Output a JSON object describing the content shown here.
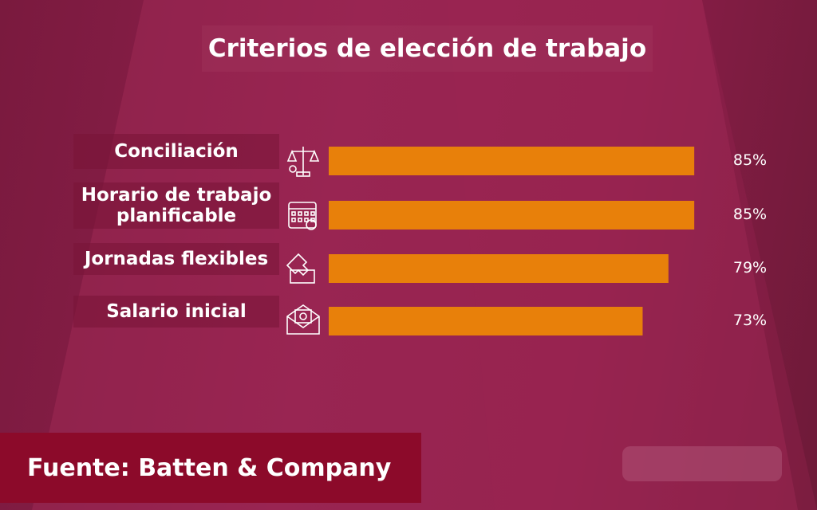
{
  "chart_data": {
    "type": "bar",
    "orientation": "horizontal",
    "title": "Criterios de elección de trabajo",
    "categories": [
      "Conciliación",
      "Horario de trabajo planificable",
      "Jornadas flexibles",
      "Salario inicial"
    ],
    "values": [
      85,
      85,
      79,
      73
    ],
    "value_labels": [
      "85%",
      "85%",
      "79%",
      "73%"
    ],
    "color": "#e8800a",
    "source": "Fuente: Batten & Company"
  }
}
